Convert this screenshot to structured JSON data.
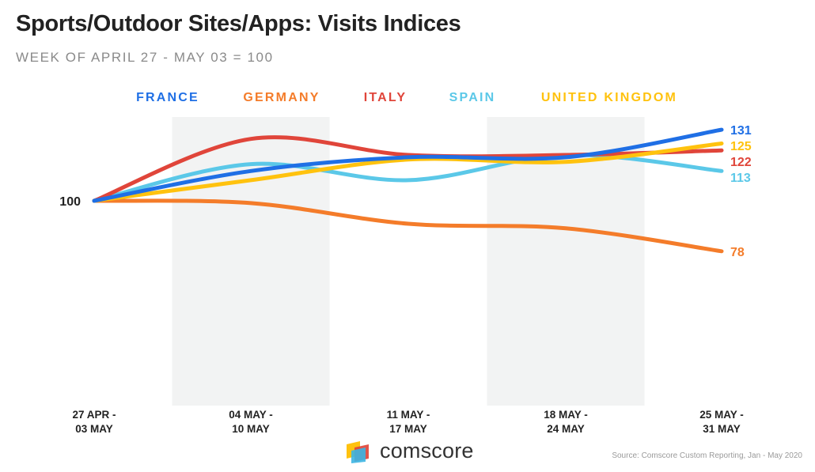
{
  "title": "Sports/Outdoor Sites/Apps: Visits Indices",
  "subtitle": "WEEK OF APRIL 27 - MAY 03 = 100",
  "brand": {
    "name": "comscore"
  },
  "source": "Source: Comscore Custom Reporting, Jan - May 2020",
  "colors": {
    "shade": "#f2f3f3",
    "axis_text": "#222222"
  },
  "chart_data": {
    "type": "line",
    "title": "Sports/Outdoor Sites/Apps: Visits Indices",
    "subtitle": "WEEK OF APRIL 27 - MAY 03 = 100",
    "categories": [
      [
        "27 APR -",
        "03 MAY"
      ],
      [
        "04 MAY -",
        "10 MAY"
      ],
      [
        "11 MAY -",
        "17 MAY"
      ],
      [
        "18 MAY -",
        "24 MAY"
      ],
      [
        "25 MAY -",
        "31 MAY"
      ]
    ],
    "y_tick_label": "100",
    "y_baseline": 100,
    "ylim": [
      40,
      140
    ],
    "legend_position": "top",
    "grid": false,
    "shaded_categories": [
      1,
      3
    ],
    "series": [
      {
        "name": "FRANCE",
        "color": "#1f6fe5",
        "values": [
          100,
          113,
          119,
          119,
          131
        ],
        "end_label": "131"
      },
      {
        "name": "GERMANY",
        "color": "#f47c2a",
        "values": [
          100,
          99,
          90,
          88,
          78
        ],
        "end_label": "78"
      },
      {
        "name": "ITALY",
        "color": "#e0453a",
        "values": [
          100,
          127,
          120,
          120,
          122
        ],
        "end_label": "122"
      },
      {
        "name": "SPAIN",
        "color": "#5bc8e8",
        "values": [
          100,
          116,
          109,
          120,
          113
        ],
        "end_label": "113"
      },
      {
        "name": "UNITED KINGDOM",
        "color": "#ffc20e",
        "values": [
          100,
          109,
          118,
          117,
          125
        ],
        "end_label": "125"
      }
    ]
  }
}
